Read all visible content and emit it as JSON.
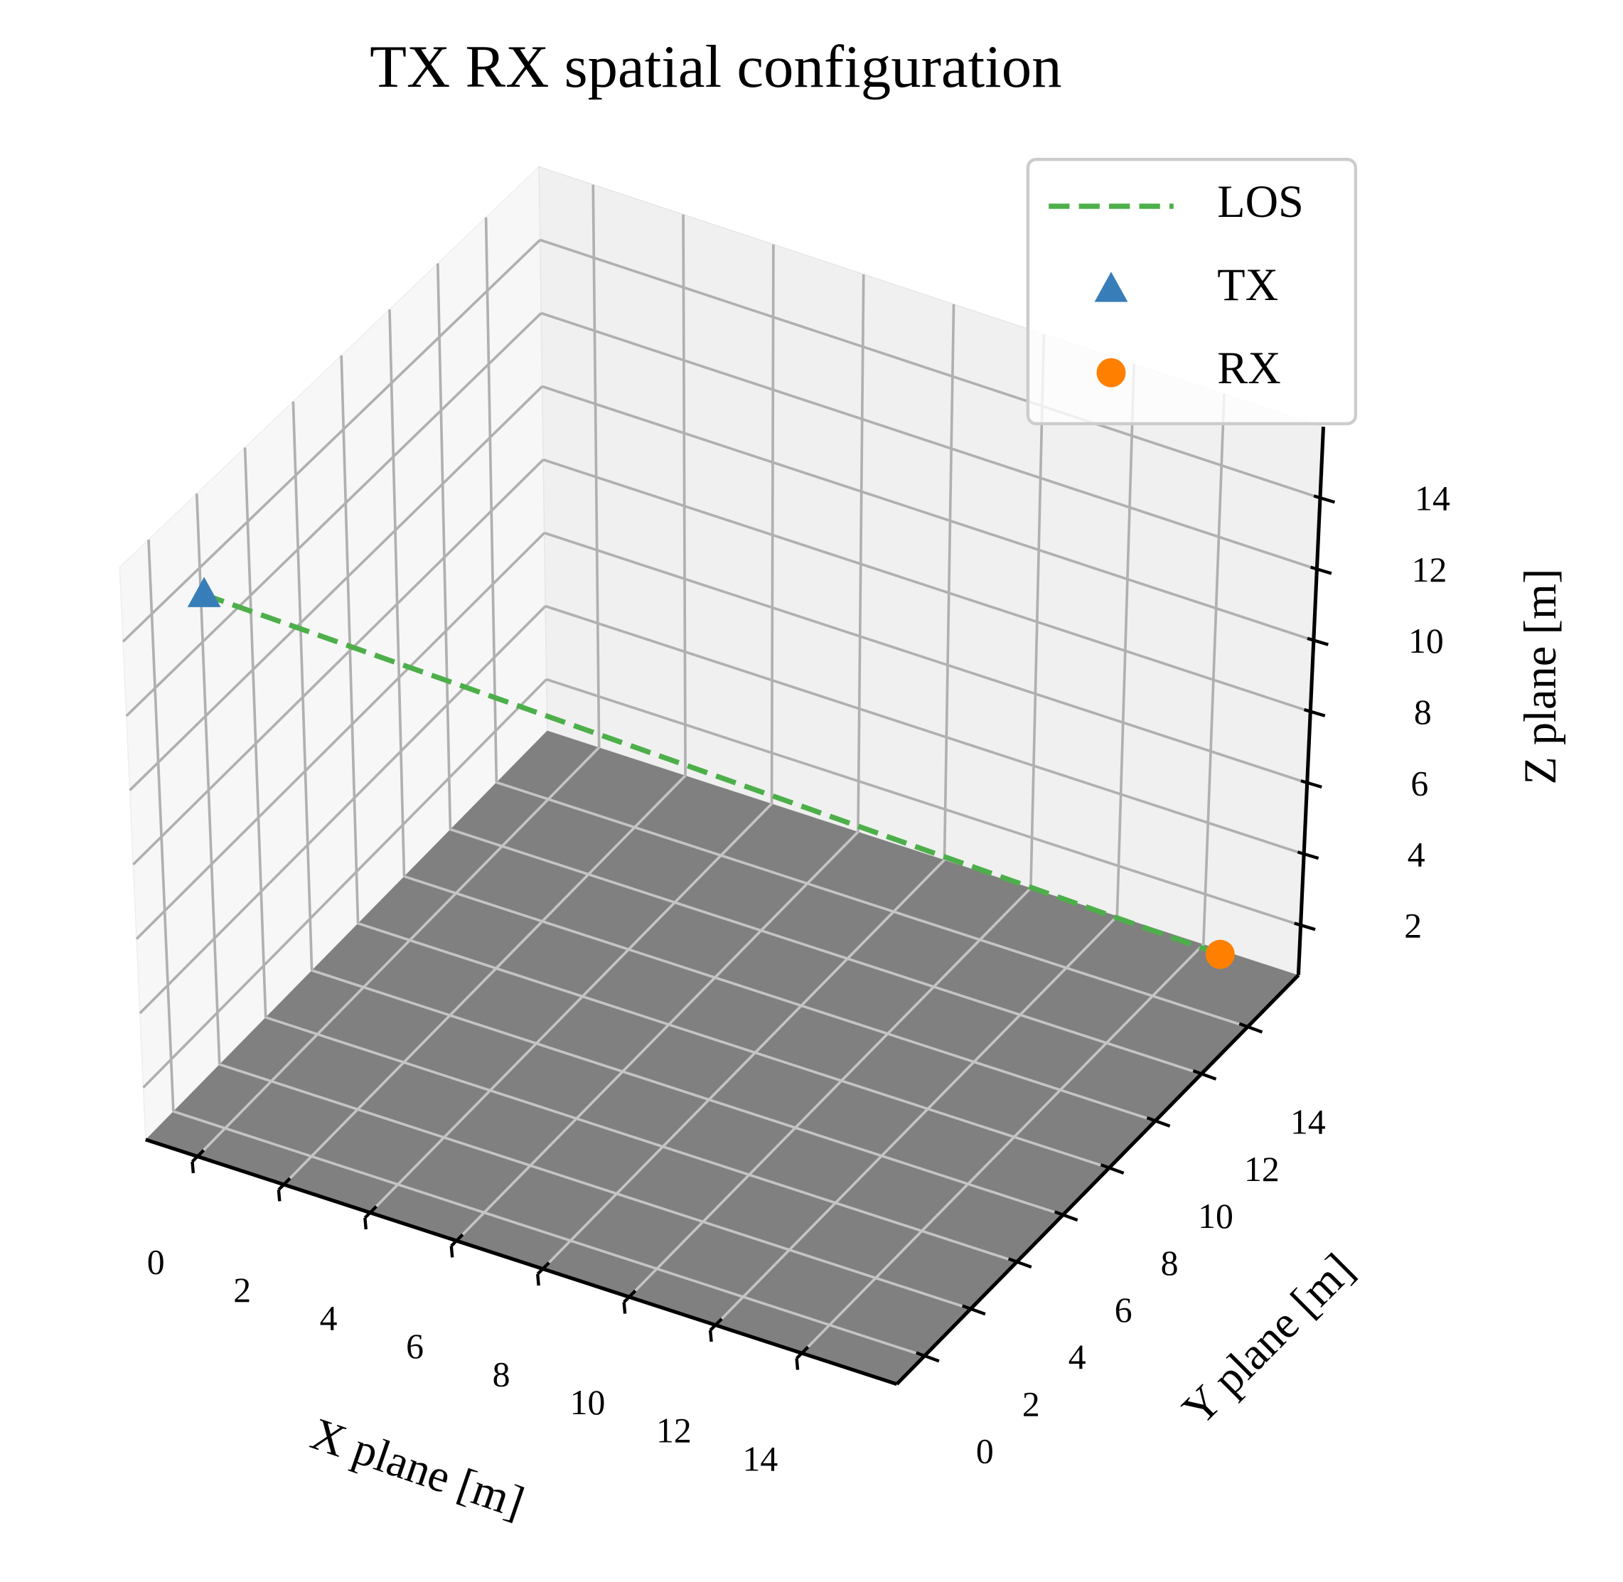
{
  "chart_data": {
    "type": "scatter3d",
    "title": "TX RX spatial configuration",
    "xlabel": "X plane [m]",
    "ylabel": "Y plane [m]",
    "zlabel": "Z plane [m]",
    "xlim": [
      -1.2,
      16.2
    ],
    "ylim": [
      -1.2,
      16.2
    ],
    "zlim": [
      0.6,
      16
    ],
    "xticks": [
      0,
      2,
      4,
      6,
      8,
      10,
      12,
      14
    ],
    "yticks": [
      0,
      2,
      4,
      6,
      8,
      10,
      12,
      14
    ],
    "zticks": [
      2,
      4,
      6,
      8,
      10,
      12,
      14
    ],
    "grid": true,
    "floor_color": "#808080",
    "legend": "upper right",
    "series": [
      {
        "name": "LOS",
        "color": "#4daf4a",
        "linestyle": "dashed",
        "x": [
          0,
          15
        ],
        "y": [
          0,
          15
        ],
        "z": [
          15,
          1.5
        ]
      },
      {
        "name": "TX",
        "color": "#377eb8",
        "marker": "triangle",
        "x": [
          0
        ],
        "y": [
          0
        ],
        "z": [
          15
        ]
      },
      {
        "name": "RX",
        "color": "#ff7f00",
        "marker": "circle",
        "x": [
          15
        ],
        "y": [
          15
        ],
        "z": [
          1.5
        ]
      }
    ]
  }
}
